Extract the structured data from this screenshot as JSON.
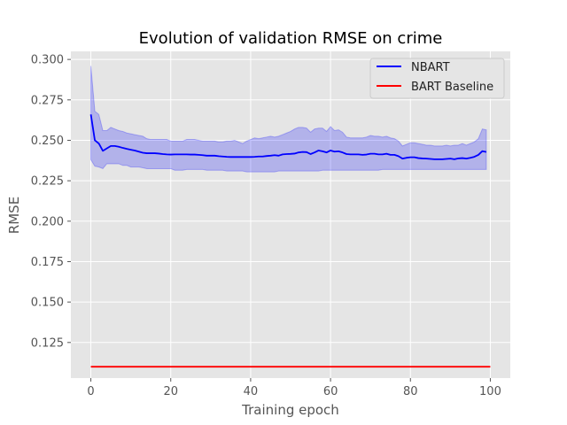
{
  "chart_data": {
    "type": "line",
    "title": "Evolution of validation RMSE on crime",
    "xlabel": "Training epoch",
    "ylabel": "RMSE",
    "xlim": [
      -5,
      105
    ],
    "ylim": [
      0.103,
      0.305
    ],
    "xticks": [
      0,
      20,
      40,
      60,
      80,
      100
    ],
    "yticks": [
      0.125,
      0.15,
      0.175,
      0.2,
      0.225,
      0.25,
      0.275,
      0.3
    ],
    "ytick_labels": [
      "0.125",
      "0.150",
      "0.175",
      "0.200",
      "0.225",
      "0.250",
      "0.275",
      "0.300"
    ],
    "xtick_labels": [
      "0",
      "20",
      "40",
      "60",
      "80",
      "100"
    ],
    "grid": true,
    "background": "#e5e5e5",
    "legend_position": "top-right",
    "series": [
      {
        "name": "NBART",
        "color": "#0000ff",
        "band_color": "#0000ff",
        "x": [
          0,
          1,
          2,
          3,
          4,
          5,
          6,
          7,
          8,
          9,
          10,
          11,
          12,
          13,
          14,
          15,
          16,
          17,
          18,
          19,
          20,
          21,
          22,
          23,
          24,
          25,
          26,
          27,
          28,
          29,
          30,
          31,
          32,
          33,
          34,
          35,
          36,
          37,
          38,
          39,
          40,
          41,
          42,
          43,
          44,
          45,
          46,
          47,
          48,
          49,
          50,
          51,
          52,
          53,
          54,
          55,
          56,
          57,
          58,
          59,
          60,
          61,
          62,
          63,
          64,
          65,
          66,
          67,
          68,
          69,
          70,
          71,
          72,
          73,
          74,
          75,
          76,
          77,
          78,
          79,
          80,
          81,
          82,
          83,
          84,
          85,
          86,
          87,
          88,
          89,
          90,
          91,
          92,
          93,
          94,
          95,
          96,
          97,
          98,
          99
        ],
        "y": [
          0.266,
          0.25,
          0.248,
          0.2435,
          0.245,
          0.2465,
          0.2465,
          0.246,
          0.2453,
          0.2447,
          0.2442,
          0.2437,
          0.243,
          0.2423,
          0.242,
          0.242,
          0.242,
          0.2418,
          0.2415,
          0.2413,
          0.2412,
          0.2413,
          0.2413,
          0.2413,
          0.2413,
          0.2412,
          0.2412,
          0.241,
          0.2408,
          0.2405,
          0.2405,
          0.2405,
          0.2402,
          0.24,
          0.2398,
          0.2397,
          0.2397,
          0.2397,
          0.2397,
          0.2397,
          0.2397,
          0.2398,
          0.24,
          0.24,
          0.2403,
          0.2405,
          0.2408,
          0.2405,
          0.2413,
          0.2415,
          0.2416,
          0.2418,
          0.2425,
          0.2428,
          0.2427,
          0.2415,
          0.2425,
          0.2437,
          0.2432,
          0.2425,
          0.2437,
          0.243,
          0.2432,
          0.2425,
          0.2415,
          0.2413,
          0.2413,
          0.2413,
          0.241,
          0.2412,
          0.2417,
          0.2417,
          0.2413,
          0.2413,
          0.2417,
          0.241,
          0.241,
          0.2402,
          0.2387,
          0.2392,
          0.2395,
          0.2395,
          0.239,
          0.2388,
          0.2387,
          0.2385,
          0.2383,
          0.2383,
          0.2383,
          0.2385,
          0.2387,
          0.2383,
          0.2388,
          0.239,
          0.2387,
          0.2392,
          0.2398,
          0.241,
          0.2433,
          0.2428
        ],
        "y_upper": [
          0.296,
          0.268,
          0.266,
          0.256,
          0.256,
          0.258,
          0.257,
          0.256,
          0.2555,
          0.2545,
          0.254,
          0.2535,
          0.253,
          0.2525,
          0.251,
          0.2505,
          0.2505,
          0.2505,
          0.2505,
          0.2505,
          0.2495,
          0.2495,
          0.2495,
          0.2495,
          0.2505,
          0.2505,
          0.2505,
          0.25,
          0.2495,
          0.2495,
          0.2495,
          0.2495,
          0.249,
          0.249,
          0.2495,
          0.2495,
          0.25,
          0.249,
          0.248,
          0.2495,
          0.2505,
          0.2515,
          0.251,
          0.2515,
          0.252,
          0.2525,
          0.252,
          0.2525,
          0.2535,
          0.2545,
          0.2555,
          0.257,
          0.258,
          0.258,
          0.2575,
          0.255,
          0.257,
          0.2575,
          0.2575,
          0.2555,
          0.2585,
          0.256,
          0.2565,
          0.255,
          0.252,
          0.2515,
          0.2515,
          0.2515,
          0.2515,
          0.252,
          0.253,
          0.2525,
          0.2525,
          0.252,
          0.2525,
          0.2515,
          0.251,
          0.2495,
          0.2465,
          0.2475,
          0.2485,
          0.2485,
          0.248,
          0.2475,
          0.247,
          0.247,
          0.2465,
          0.2465,
          0.2465,
          0.247,
          0.2465,
          0.247,
          0.247,
          0.248,
          0.247,
          0.248,
          0.249,
          0.251,
          0.257,
          0.2565
        ],
        "y_lower": [
          0.238,
          0.234,
          0.2335,
          0.2325,
          0.2355,
          0.2355,
          0.2355,
          0.2355,
          0.2345,
          0.2345,
          0.2335,
          0.2335,
          0.2335,
          0.233,
          0.2325,
          0.2325,
          0.2325,
          0.2325,
          0.2325,
          0.2325,
          0.2325,
          0.2315,
          0.2315,
          0.2315,
          0.232,
          0.232,
          0.232,
          0.232,
          0.232,
          0.2315,
          0.2315,
          0.2315,
          0.2315,
          0.2315,
          0.231,
          0.231,
          0.231,
          0.231,
          0.231,
          0.2305,
          0.2305,
          0.2305,
          0.2305,
          0.2305,
          0.2305,
          0.2305,
          0.2305,
          0.231,
          0.231,
          0.231,
          0.231,
          0.231,
          0.231,
          0.231,
          0.231,
          0.231,
          0.231,
          0.231,
          0.2315,
          0.2315,
          0.2315,
          0.2315,
          0.2315,
          0.2315,
          0.2315,
          0.2315,
          0.2315,
          0.2315,
          0.2315,
          0.2315,
          0.2315,
          0.2315,
          0.2315,
          0.232,
          0.232,
          0.232,
          0.232,
          0.232,
          0.232,
          0.232,
          0.232,
          0.232,
          0.232,
          0.232,
          0.232,
          0.232,
          0.232,
          0.232,
          0.232,
          0.232,
          0.232,
          0.232,
          0.232,
          0.232,
          0.232,
          0.232,
          0.232,
          0.232,
          0.232,
          0.232
        ]
      },
      {
        "name": "BART Baseline",
        "color": "#ff0000",
        "x": [
          0,
          100
        ],
        "y": [
          0.11,
          0.11
        ]
      }
    ]
  }
}
